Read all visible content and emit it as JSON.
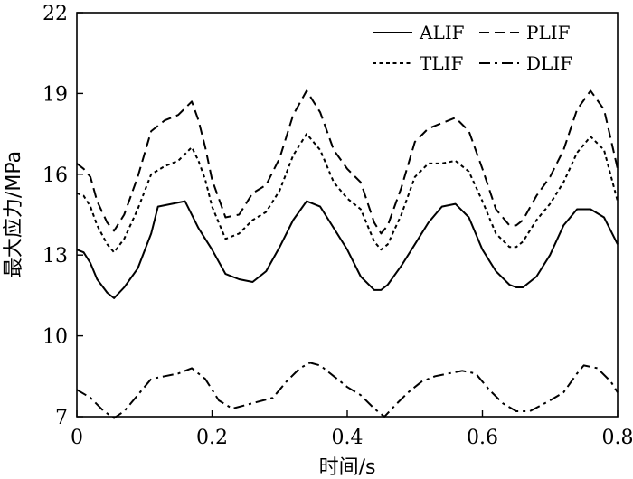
{
  "chart_data": {
    "type": "line",
    "xlabel": "时间/s",
    "ylabel": "最大应力/MPa",
    "xlim": [
      0,
      0.8
    ],
    "ylim": [
      7,
      22
    ],
    "xticks": [
      "0",
      "0.2",
      "0.4",
      "0.6",
      "0.8"
    ],
    "yticks": [
      "7",
      "10",
      "13",
      "16",
      "19",
      "22"
    ],
    "grid": false,
    "legend_position": "top-right",
    "series": [
      {
        "name": "ALIF",
        "style": "solid",
        "x": [
          0,
          0.01,
          0.02,
          0.03,
          0.045,
          0.055,
          0.07,
          0.09,
          0.11,
          0.12,
          0.14,
          0.16,
          0.18,
          0.19,
          0.2,
          0.22,
          0.24,
          0.26,
          0.28,
          0.3,
          0.32,
          0.34,
          0.36,
          0.38,
          0.4,
          0.42,
          0.44,
          0.45,
          0.46,
          0.48,
          0.5,
          0.52,
          0.54,
          0.56,
          0.58,
          0.6,
          0.62,
          0.64,
          0.65,
          0.66,
          0.68,
          0.7,
          0.72,
          0.74,
          0.76,
          0.78,
          0.8
        ],
        "y": [
          13.2,
          13.1,
          12.7,
          12.1,
          11.6,
          11.4,
          11.8,
          12.5,
          13.8,
          14.8,
          14.9,
          15.0,
          14.0,
          13.6,
          13.2,
          12.3,
          12.1,
          12.0,
          12.4,
          13.3,
          14.3,
          15.0,
          14.8,
          14.0,
          13.2,
          12.2,
          11.7,
          11.7,
          11.9,
          12.6,
          13.4,
          14.2,
          14.8,
          14.9,
          14.4,
          13.2,
          12.4,
          11.9,
          11.8,
          11.8,
          12.2,
          13.0,
          14.1,
          14.7,
          14.7,
          14.4,
          13.4
        ]
      },
      {
        "name": "PLIF",
        "style": "dashed",
        "x": [
          0,
          0.01,
          0.02,
          0.03,
          0.045,
          0.055,
          0.07,
          0.09,
          0.11,
          0.13,
          0.15,
          0.17,
          0.18,
          0.19,
          0.2,
          0.22,
          0.24,
          0.26,
          0.28,
          0.3,
          0.32,
          0.34,
          0.36,
          0.38,
          0.4,
          0.42,
          0.44,
          0.45,
          0.46,
          0.48,
          0.5,
          0.52,
          0.54,
          0.56,
          0.58,
          0.6,
          0.62,
          0.64,
          0.65,
          0.66,
          0.68,
          0.7,
          0.72,
          0.74,
          0.76,
          0.78,
          0.8
        ],
        "y": [
          16.4,
          16.2,
          15.9,
          15.0,
          14.2,
          13.9,
          14.5,
          15.9,
          17.6,
          18.0,
          18.2,
          18.7,
          18.0,
          17.0,
          15.8,
          14.4,
          14.5,
          15.3,
          15.6,
          16.6,
          18.2,
          19.1,
          18.3,
          16.9,
          16.2,
          15.7,
          14.2,
          13.8,
          14.1,
          15.5,
          17.2,
          17.7,
          17.9,
          18.1,
          17.6,
          16.2,
          14.7,
          14.1,
          14.1,
          14.3,
          15.2,
          15.9,
          16.9,
          18.4,
          19.1,
          18.4,
          16.2
        ]
      },
      {
        "name": "TLIF",
        "style": "dotted",
        "x": [
          0,
          0.01,
          0.02,
          0.03,
          0.045,
          0.055,
          0.07,
          0.09,
          0.11,
          0.13,
          0.15,
          0.17,
          0.18,
          0.19,
          0.2,
          0.22,
          0.24,
          0.26,
          0.28,
          0.3,
          0.32,
          0.34,
          0.36,
          0.38,
          0.4,
          0.42,
          0.44,
          0.45,
          0.46,
          0.48,
          0.5,
          0.52,
          0.54,
          0.56,
          0.58,
          0.6,
          0.62,
          0.64,
          0.65,
          0.66,
          0.68,
          0.7,
          0.72,
          0.74,
          0.76,
          0.78,
          0.8
        ],
        "y": [
          15.3,
          15.2,
          14.8,
          14.1,
          13.4,
          13.1,
          13.6,
          14.7,
          16.0,
          16.3,
          16.5,
          17.0,
          16.5,
          15.8,
          14.8,
          13.6,
          13.8,
          14.3,
          14.6,
          15.4,
          16.7,
          17.5,
          16.9,
          15.7,
          15.1,
          14.7,
          13.5,
          13.2,
          13.4,
          14.5,
          15.9,
          16.4,
          16.4,
          16.5,
          16.1,
          15.0,
          13.8,
          13.3,
          13.3,
          13.5,
          14.3,
          14.9,
          15.7,
          16.8,
          17.4,
          16.9,
          15.0
        ]
      },
      {
        "name": "DLIF",
        "style": "dashdot",
        "x": [
          0,
          0.02,
          0.04,
          0.055,
          0.07,
          0.09,
          0.11,
          0.13,
          0.15,
          0.17,
          0.19,
          0.21,
          0.23,
          0.26,
          0.29,
          0.31,
          0.33,
          0.345,
          0.36,
          0.38,
          0.4,
          0.42,
          0.44,
          0.455,
          0.47,
          0.49,
          0.51,
          0.53,
          0.55,
          0.57,
          0.59,
          0.61,
          0.63,
          0.65,
          0.67,
          0.7,
          0.72,
          0.74,
          0.75,
          0.77,
          0.79,
          0.8
        ],
        "y": [
          8.0,
          7.7,
          7.2,
          6.95,
          7.2,
          7.8,
          8.4,
          8.5,
          8.6,
          8.8,
          8.4,
          7.6,
          7.3,
          7.5,
          7.7,
          8.3,
          8.8,
          9.0,
          8.9,
          8.5,
          8.1,
          7.8,
          7.3,
          7.0,
          7.4,
          7.9,
          8.3,
          8.5,
          8.6,
          8.7,
          8.6,
          8.0,
          7.5,
          7.2,
          7.2,
          7.6,
          7.9,
          8.6,
          8.9,
          8.8,
          8.3,
          7.9
        ]
      }
    ]
  }
}
